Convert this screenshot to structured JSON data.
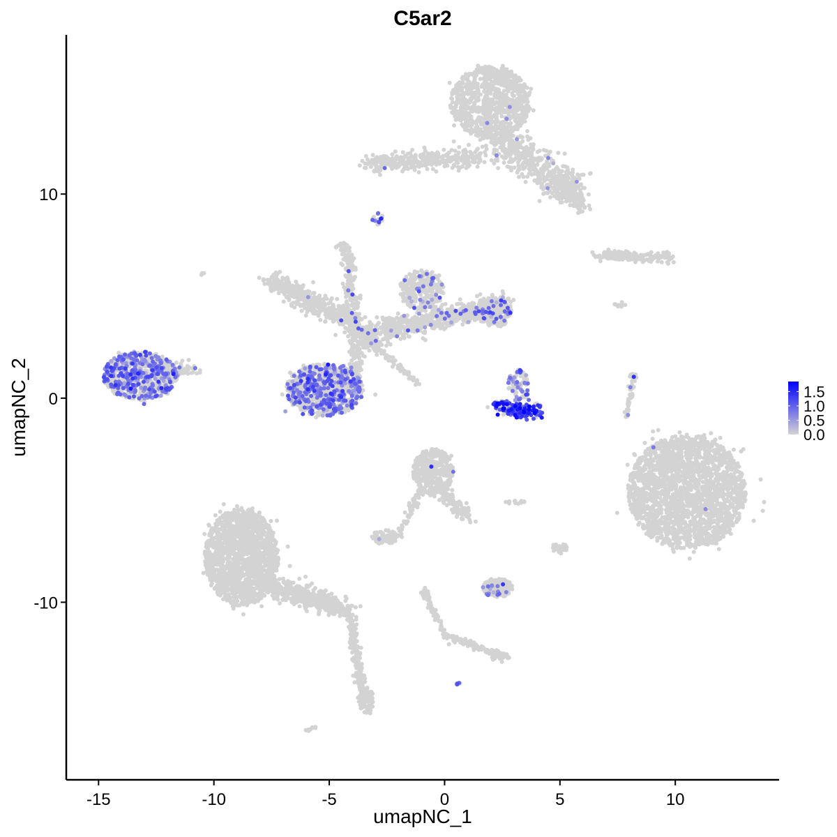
{
  "chart_data": {
    "type": "scatter",
    "title": "C5ar2",
    "xlabel": "umapNC_1",
    "ylabel": "umapNC_2",
    "xlim": [
      -16.4,
      14.5
    ],
    "ylim": [
      -18.7,
      17.8
    ],
    "x_ticks": [
      -15,
      -10,
      -5,
      0,
      5,
      10
    ],
    "x_tick_labels": [
      "-15",
      "-10",
      "-5",
      "0",
      "5",
      "10"
    ],
    "y_ticks": [
      -10,
      0,
      10
    ],
    "y_tick_labels": [
      "-10",
      "0",
      "10"
    ],
    "grid": false,
    "color_scale": {
      "low": "#d3d3d3",
      "high": "#0000ff",
      "min": 0,
      "max": 1.85
    },
    "legend": {
      "position": "right",
      "ticks": [
        0.0,
        0.5,
        1.0,
        1.5
      ],
      "tick_labels": [
        "0.0",
        "0.5",
        "1.0",
        "1.5"
      ]
    },
    "clusters": [
      {
        "kind": "blob",
        "cx": 2.0,
        "cy": 14.5,
        "sx": 1.1,
        "sy": 1.1,
        "n": 900,
        "expr_frac": 0.003,
        "expr_mean": 0.6
      },
      {
        "kind": "segment",
        "x1": 2.0,
        "y1": 13.0,
        "x2": 5.6,
        "y2": 10.0,
        "w": 0.8,
        "n": 500,
        "expr_frac": 0.004,
        "expr_mean": 0.6
      },
      {
        "kind": "segment",
        "x1": 5.0,
        "y1": 10.6,
        "x2": 6.0,
        "y2": 9.3,
        "w": 0.5,
        "n": 150,
        "expr_frac": 0,
        "expr_mean": 0
      },
      {
        "kind": "segment",
        "x1": -3.3,
        "y1": 11.5,
        "x2": 1.5,
        "y2": 11.8,
        "w": 0.45,
        "n": 350,
        "expr_frac": 0.004,
        "expr_mean": 0.9
      },
      {
        "kind": "blob",
        "cx": -2.9,
        "cy": 8.8,
        "sx": 0.15,
        "sy": 0.2,
        "n": 18,
        "expr_frac": 0.3,
        "expr_mean": 1.0
      },
      {
        "kind": "segment",
        "x1": 6.6,
        "y1": 7.0,
        "x2": 10.0,
        "y2": 6.9,
        "w": 0.25,
        "n": 160,
        "expr_frac": 0,
        "expr_mean": 0
      },
      {
        "kind": "blob",
        "cx": -13.2,
        "cy": 1.1,
        "sx": 1.0,
        "sy": 0.75,
        "n": 700,
        "expr_frac": 0.4,
        "expr_mean": 0.8
      },
      {
        "kind": "segment",
        "x1": -12.5,
        "y1": 1.3,
        "x2": -10.8,
        "y2": 1.4,
        "w": 0.35,
        "n": 120,
        "expr_frac": 0.05,
        "expr_mean": 0.7
      },
      {
        "kind": "blob",
        "cx": -5.2,
        "cy": 0.4,
        "sx": 1.05,
        "sy": 0.8,
        "n": 800,
        "expr_frac": 0.38,
        "expr_mean": 0.8
      },
      {
        "kind": "segment",
        "x1": -7.5,
        "y1": 5.7,
        "x2": -4.0,
        "y2": 3.8,
        "w": 0.55,
        "n": 400,
        "expr_frac": 0.004,
        "expr_mean": 0.7
      },
      {
        "kind": "segment",
        "x1": -4.0,
        "y1": 3.8,
        "x2": -3.0,
        "y2": 2.5,
        "w": 0.4,
        "n": 200,
        "expr_frac": 0.02,
        "expr_mean": 0.8
      },
      {
        "kind": "segment",
        "x1": -4.2,
        "y1": 7.0,
        "x2": -3.8,
        "y2": 1.2,
        "w": 0.3,
        "n": 260,
        "expr_frac": 0.02,
        "expr_mean": 0.9
      },
      {
        "kind": "segment",
        "x1": -3.0,
        "y1": 2.6,
        "x2": -1.2,
        "y2": 0.7,
        "w": 0.15,
        "n": 60,
        "expr_frac": 0,
        "expr_mean": 0
      },
      {
        "kind": "segment",
        "x1": -2.8,
        "y1": 3.3,
        "x2": 2.6,
        "y2": 4.6,
        "w": 0.55,
        "n": 700,
        "expr_frac": 0.05,
        "expr_mean": 0.8
      },
      {
        "kind": "blob",
        "cx": -1.0,
        "cy": 5.3,
        "sx": 0.6,
        "sy": 0.6,
        "n": 250,
        "expr_frac": 0.08,
        "expr_mean": 0.8
      },
      {
        "kind": "blob",
        "cx": 2.2,
        "cy": 4.2,
        "sx": 0.45,
        "sy": 0.45,
        "n": 200,
        "expr_frac": 0.1,
        "expr_mean": 0.9
      },
      {
        "kind": "segment",
        "x1": 2.2,
        "y1": -0.4,
        "x2": 4.2,
        "y2": -0.7,
        "w": 0.35,
        "n": 180,
        "expr_frac": 0.6,
        "expr_mean": 1.3
      },
      {
        "kind": "blob",
        "cx": 3.2,
        "cy": 0.6,
        "sx": 0.3,
        "sy": 0.5,
        "n": 90,
        "expr_frac": 0.35,
        "expr_mean": 0.8
      },
      {
        "kind": "blob",
        "cx": 10.5,
        "cy": -4.6,
        "sx": 1.6,
        "sy": 1.75,
        "n": 2200,
        "expr_frac": 0.002,
        "expr_mean": 0.6
      },
      {
        "kind": "segment",
        "x1": 8.2,
        "y1": 1.2,
        "x2": 7.9,
        "y2": -0.9,
        "w": 0.12,
        "n": 50,
        "expr_frac": 0.02,
        "expr_mean": 0.7
      },
      {
        "kind": "blob",
        "cx": -0.5,
        "cy": -3.6,
        "sx": 0.55,
        "sy": 0.7,
        "n": 350,
        "expr_frac": 0.01,
        "expr_mean": 1.0
      },
      {
        "kind": "segment",
        "x1": -0.2,
        "y1": -4.5,
        "x2": 1.0,
        "y2": -5.8,
        "w": 0.3,
        "n": 120,
        "expr_frac": 0,
        "expr_mean": 0
      },
      {
        "kind": "segment",
        "x1": -2.0,
        "y1": -6.8,
        "x2": -1.0,
        "y2": -4.4,
        "w": 0.15,
        "n": 70,
        "expr_frac": 0,
        "expr_mean": 0
      },
      {
        "kind": "blob",
        "cx": -2.6,
        "cy": -6.8,
        "sx": 0.35,
        "sy": 0.22,
        "n": 80,
        "expr_frac": 0.02,
        "expr_mean": 0.8
      },
      {
        "kind": "blob",
        "cx": -8.8,
        "cy": -7.8,
        "sx": 1.0,
        "sy": 1.5,
        "n": 1600,
        "expr_frac": 0,
        "expr_mean": 0
      },
      {
        "kind": "segment",
        "x1": -8.0,
        "y1": -9.0,
        "x2": -4.2,
        "y2": -10.4,
        "w": 0.55,
        "n": 500,
        "expr_frac": 0,
        "expr_mean": 0
      },
      {
        "kind": "segment",
        "x1": -4.1,
        "y1": -10.8,
        "x2": -3.5,
        "y2": -15.0,
        "w": 0.2,
        "n": 200,
        "expr_frac": 0,
        "expr_mean": 0
      },
      {
        "kind": "blob",
        "cx": -3.4,
        "cy": -14.8,
        "sx": 0.2,
        "sy": 0.4,
        "n": 90,
        "expr_frac": 0,
        "expr_mean": 0
      },
      {
        "kind": "segment",
        "x1": -6.0,
        "y1": -16.3,
        "x2": -5.6,
        "y2": -16.1,
        "w": 0.08,
        "n": 10,
        "expr_frac": 0,
        "expr_mean": 0
      },
      {
        "kind": "blob",
        "cx": 2.3,
        "cy": -9.3,
        "sx": 0.4,
        "sy": 0.3,
        "n": 160,
        "expr_frac": 0.08,
        "expr_mean": 0.7
      },
      {
        "kind": "segment",
        "x1": -0.9,
        "y1": -9.4,
        "x2": 0.0,
        "y2": -11.6,
        "w": 0.15,
        "n": 80,
        "expr_frac": 0,
        "expr_mean": 0
      },
      {
        "kind": "segment",
        "x1": 0.0,
        "y1": -11.6,
        "x2": 2.4,
        "y2": -12.6,
        "w": 0.15,
        "n": 110,
        "expr_frac": 0,
        "expr_mean": 0
      },
      {
        "kind": "blob",
        "cx": 2.4,
        "cy": -12.7,
        "sx": 0.25,
        "sy": 0.15,
        "n": 40,
        "expr_frac": 0,
        "expr_mean": 0
      },
      {
        "kind": "blob",
        "cx": 5.0,
        "cy": -7.4,
        "sx": 0.2,
        "sy": 0.2,
        "n": 30,
        "expr_frac": 0,
        "expr_mean": 0
      },
      {
        "kind": "blob",
        "cx": 0.6,
        "cy": -14.0,
        "sx": 0.06,
        "sy": 0.06,
        "n": 6,
        "expr_frac": 0.5,
        "expr_mean": 0.8
      },
      {
        "kind": "blob",
        "cx": -10.5,
        "cy": 6.1,
        "sx": 0.05,
        "sy": 0.05,
        "n": 4,
        "expr_frac": 0,
        "expr_mean": 0
      },
      {
        "kind": "blob",
        "cx": -4.4,
        "cy": 7.4,
        "sx": 0.2,
        "sy": 0.15,
        "n": 25,
        "expr_frac": 0,
        "expr_mean": 0
      },
      {
        "kind": "blob",
        "cx": 7.6,
        "cy": 4.6,
        "sx": 0.15,
        "sy": 0.1,
        "n": 10,
        "expr_frac": 0,
        "expr_mean": 0
      },
      {
        "kind": "blob",
        "cx": 3.1,
        "cy": -5.1,
        "sx": 0.3,
        "sy": 0.05,
        "n": 15,
        "expr_frac": 0,
        "expr_mean": 0
      }
    ]
  }
}
